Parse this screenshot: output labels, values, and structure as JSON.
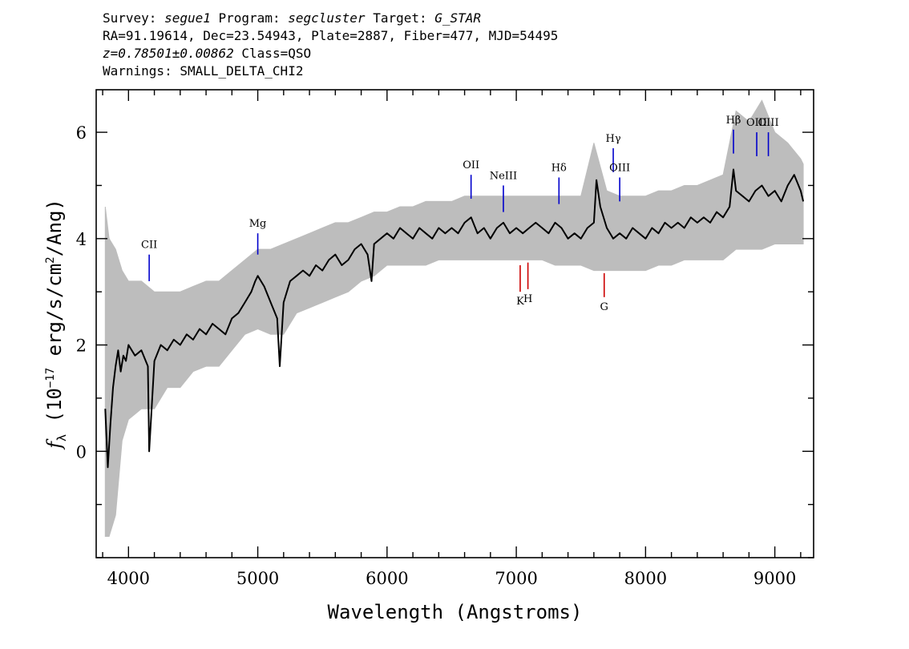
{
  "header": {
    "survey_label": "Survey:",
    "survey": "segue1",
    "program_label": "Program:",
    "program": "segcluster",
    "target_label": "Target:",
    "target": "G_STAR",
    "line2": "RA=91.19614, Dec=23.54943, Plate=2887, Fiber=477, MJD=54495",
    "redshift": "z=0.78501±0.00862",
    "class_text": "Class=QSO",
    "warnings": "Warnings: SMALL_DELTA_CHI2"
  },
  "chart_data": {
    "type": "line",
    "title": "",
    "xlabel": "Wavelength (Angstroms)",
    "ylabel_main": "f",
    "ylabel_sub": "λ",
    "ylabel_rest_a": " (10",
    "ylabel_exp1": "−17",
    "ylabel_rest_b": " erg/s/cm",
    "ylabel_exp2": "2",
    "ylabel_rest_c": "/Ang)",
    "xlim": [
      3750,
      9300
    ],
    "ylim": [
      -2.0,
      6.8
    ],
    "x_ticks": [
      4000,
      5000,
      6000,
      7000,
      8000,
      9000
    ],
    "y_ticks": [
      0,
      2,
      4,
      6
    ],
    "grid": false,
    "colors": {
      "flux": "#000000",
      "error": "#bdbdbd",
      "emission": "#0000cc",
      "absorption": "#cc0000"
    },
    "series": [
      {
        "role": "flux",
        "x": [
          3820,
          3840,
          3860,
          3880,
          3900,
          3920,
          3940,
          3960,
          3980,
          4000,
          4050,
          4100,
          4150,
          4160,
          4200,
          4250,
          4300,
          4350,
          4400,
          4450,
          4500,
          4550,
          4600,
          4650,
          4700,
          4750,
          4800,
          4850,
          4900,
          4950,
          4980,
          5000,
          5050,
          5100,
          5150,
          5170,
          5200,
          5250,
          5300,
          5350,
          5400,
          5450,
          5500,
          5550,
          5600,
          5650,
          5700,
          5750,
          5800,
          5850,
          5880,
          5900,
          5950,
          6000,
          6050,
          6100,
          6150,
          6200,
          6250,
          6300,
          6350,
          6400,
          6450,
          6500,
          6550,
          6600,
          6650,
          6700,
          6750,
          6800,
          6850,
          6900,
          6950,
          7000,
          7050,
          7100,
          7150,
          7200,
          7250,
          7300,
          7350,
          7400,
          7450,
          7500,
          7550,
          7600,
          7620,
          7650,
          7700,
          7750,
          7800,
          7850,
          7900,
          7950,
          8000,
          8050,
          8100,
          8150,
          8200,
          8250,
          8300,
          8350,
          8400,
          8450,
          8500,
          8550,
          8600,
          8650,
          8680,
          8700,
          8750,
          8800,
          8850,
          8900,
          8950,
          9000,
          9050,
          9100,
          9150,
          9200,
          9220
        ],
        "y": [
          0.8,
          -0.3,
          0.5,
          1.2,
          1.6,
          1.9,
          1.5,
          1.8,
          1.7,
          2.0,
          1.8,
          1.9,
          1.6,
          0.0,
          1.7,
          2.0,
          1.9,
          2.1,
          2.0,
          2.2,
          2.1,
          2.3,
          2.2,
          2.4,
          2.3,
          2.2,
          2.5,
          2.6,
          2.8,
          3.0,
          3.2,
          3.3,
          3.1,
          2.8,
          2.5,
          1.6,
          2.8,
          3.2,
          3.3,
          3.4,
          3.3,
          3.5,
          3.4,
          3.6,
          3.7,
          3.5,
          3.6,
          3.8,
          3.9,
          3.7,
          3.2,
          3.9,
          4.0,
          4.1,
          4.0,
          4.2,
          4.1,
          4.0,
          4.2,
          4.1,
          4.0,
          4.2,
          4.1,
          4.2,
          4.1,
          4.3,
          4.4,
          4.1,
          4.2,
          4.0,
          4.2,
          4.3,
          4.1,
          4.2,
          4.1,
          4.2,
          4.3,
          4.2,
          4.1,
          4.3,
          4.2,
          4.0,
          4.1,
          4.0,
          4.2,
          4.3,
          5.1,
          4.6,
          4.2,
          4.0,
          4.1,
          4.0,
          4.2,
          4.1,
          4.0,
          4.2,
          4.1,
          4.3,
          4.2,
          4.3,
          4.2,
          4.4,
          4.3,
          4.4,
          4.3,
          4.5,
          4.4,
          4.6,
          5.3,
          4.9,
          4.8,
          4.7,
          4.9,
          5.0,
          4.8,
          4.9,
          4.7,
          5.0,
          5.2,
          4.9,
          4.7
        ]
      },
      {
        "role": "error",
        "x": [
          3820,
          3850,
          3900,
          3950,
          4000,
          4100,
          4200,
          4300,
          4400,
          4500,
          4600,
          4700,
          4800,
          4900,
          5000,
          5100,
          5200,
          5300,
          5400,
          5500,
          5600,
          5700,
          5800,
          5900,
          6000,
          6100,
          6200,
          6300,
          6400,
          6500,
          6600,
          6700,
          6800,
          6900,
          7000,
          7100,
          7200,
          7300,
          7400,
          7500,
          7600,
          7700,
          7800,
          7900,
          8000,
          8100,
          8200,
          8300,
          8400,
          8500,
          8600,
          8700,
          8800,
          8900,
          9000,
          9100,
          9200,
          9220
        ],
        "y_low": [
          -1.6,
          -1.6,
          -1.2,
          0.2,
          0.6,
          0.8,
          0.8,
          1.2,
          1.2,
          1.5,
          1.6,
          1.6,
          1.9,
          2.2,
          2.3,
          2.2,
          2.2,
          2.6,
          2.7,
          2.8,
          2.9,
          3.0,
          3.2,
          3.3,
          3.5,
          3.5,
          3.5,
          3.5,
          3.6,
          3.6,
          3.6,
          3.6,
          3.6,
          3.6,
          3.6,
          3.6,
          3.6,
          3.5,
          3.5,
          3.5,
          3.4,
          3.4,
          3.4,
          3.4,
          3.4,
          3.5,
          3.5,
          3.6,
          3.6,
          3.6,
          3.6,
          3.8,
          3.8,
          3.8,
          3.9,
          3.9,
          3.9,
          3.9
        ],
        "y_high": [
          4.6,
          4.0,
          3.8,
          3.4,
          3.2,
          3.2,
          3.0,
          3.0,
          3.0,
          3.1,
          3.2,
          3.2,
          3.4,
          3.6,
          3.8,
          3.8,
          3.9,
          4.0,
          4.1,
          4.2,
          4.3,
          4.3,
          4.4,
          4.5,
          4.5,
          4.6,
          4.6,
          4.7,
          4.7,
          4.7,
          4.8,
          4.8,
          4.8,
          4.8,
          4.8,
          4.8,
          4.8,
          4.8,
          4.8,
          4.8,
          5.8,
          4.9,
          4.8,
          4.8,
          4.8,
          4.9,
          4.9,
          5.0,
          5.0,
          5.1,
          5.2,
          6.4,
          6.2,
          6.6,
          6.0,
          5.8,
          5.5,
          5.4
        ]
      }
    ],
    "line_markers": [
      {
        "label": "CII",
        "x": 4160,
        "y_bottom": 3.2,
        "y_top": 3.7,
        "kind": "emission"
      },
      {
        "label": "Mg",
        "x": 5000,
        "y_bottom": 3.7,
        "y_top": 4.1,
        "kind": "emission"
      },
      {
        "label": "OII",
        "x": 6650,
        "y_bottom": 4.75,
        "y_top": 5.2,
        "kind": "emission"
      },
      {
        "label": "NeIII",
        "x": 6900,
        "y_bottom": 4.5,
        "y_top": 5.0,
        "kind": "emission"
      },
      {
        "label": "Hδ",
        "x": 7330,
        "y_bottom": 4.65,
        "y_top": 5.15,
        "kind": "emission"
      },
      {
        "label": "Hγ",
        "x": 7750,
        "y_bottom": 5.25,
        "y_top": 5.7,
        "kind": "emission"
      },
      {
        "label": "OIII",
        "x": 7800,
        "y_bottom": 4.7,
        "y_top": 5.15,
        "kind": "emission"
      },
      {
        "label": "Hβ",
        "x": 8680,
        "y_bottom": 5.6,
        "y_top": 6.05,
        "kind": "emission"
      },
      {
        "label": "OIII",
        "x": 8860,
        "y_bottom": 5.55,
        "y_top": 6.0,
        "kind": "emission"
      },
      {
        "label": "OIII",
        "x": 8950,
        "y_bottom": 5.55,
        "y_top": 6.0,
        "kind": "emission"
      },
      {
        "label": "K",
        "x": 7030,
        "y_bottom": 3.0,
        "y_top": 3.5,
        "kind": "absorption"
      },
      {
        "label": "H",
        "x": 7090,
        "y_bottom": 3.05,
        "y_top": 3.55,
        "kind": "absorption"
      },
      {
        "label": "G",
        "x": 7680,
        "y_bottom": 2.9,
        "y_top": 3.35,
        "kind": "absorption"
      }
    ]
  }
}
